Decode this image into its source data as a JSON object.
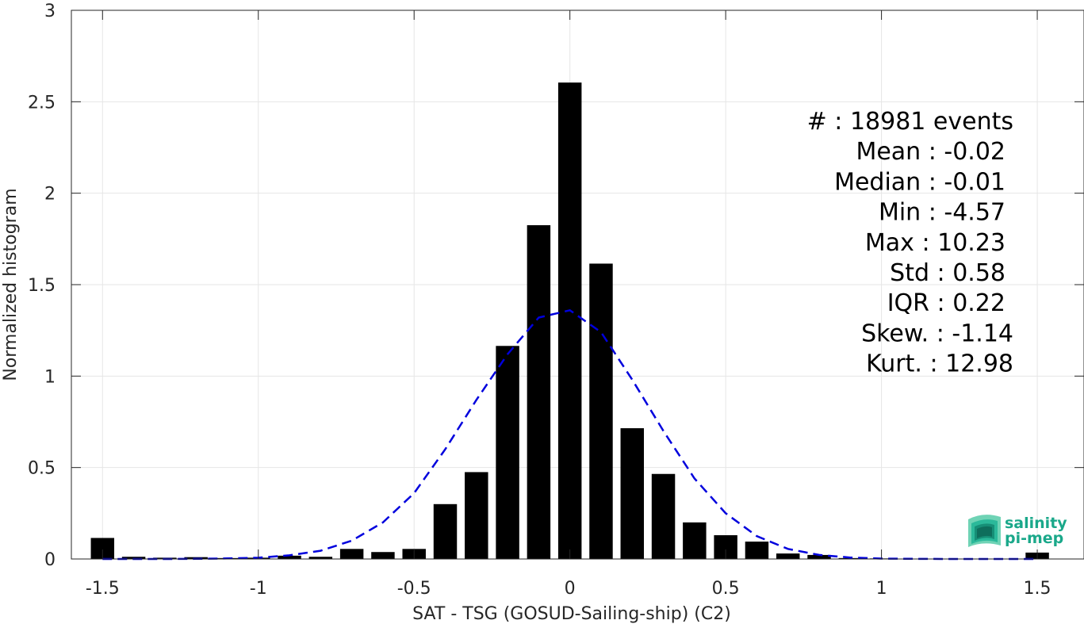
{
  "chart_data": {
    "type": "bar",
    "xlabel": "SAT - TSG (GOSUD-Sailing-ship) (C2)",
    "ylabel": "Normalized histogram",
    "xlim": [
      -1.6,
      1.65
    ],
    "ylim": [
      0,
      3
    ],
    "xticks": [
      -1.5,
      -1,
      -0.5,
      0,
      0.5,
      1,
      1.5
    ],
    "xtick_labels": [
      "-1.5",
      "-1",
      "-0.5",
      "0",
      "0.5",
      "1",
      "1.5"
    ],
    "yticks": [
      0,
      0.5,
      1,
      1.5,
      2,
      2.5,
      3
    ],
    "ytick_labels": [
      "0",
      "0.5",
      "1",
      "1.5",
      "2",
      "2.5",
      "3"
    ],
    "grid": true,
    "bar_width": 0.075,
    "bars": {
      "x": [
        -1.5,
        -1.4,
        -1.3,
        -1.2,
        -1.1,
        -1.0,
        -0.9,
        -0.8,
        -0.7,
        -0.6,
        -0.5,
        -0.4,
        -0.3,
        -0.2,
        -0.1,
        0.0,
        0.1,
        0.2,
        0.3,
        0.4,
        0.5,
        0.6,
        0.7,
        0.8,
        0.9,
        1.0,
        1.1,
        1.2,
        1.3,
        1.4,
        1.5
      ],
      "values": [
        0.115,
        0.012,
        0.007,
        0.01,
        0.005,
        0.007,
        0.018,
        0.012,
        0.055,
        0.038,
        0.055,
        0.3,
        0.475,
        1.165,
        1.825,
        2.605,
        1.615,
        0.715,
        0.465,
        0.2,
        0.13,
        0.095,
        0.03,
        0.022,
        0.005,
        0.003,
        0.002,
        0.002,
        0.002,
        0.002,
        0.035
      ],
      "color": "#000000"
    },
    "fit_curve": {
      "style": "dashed",
      "color": "#0000dd",
      "x": [
        -1.5,
        -1.4,
        -1.3,
        -1.2,
        -1.1,
        -1.0,
        -0.9,
        -0.8,
        -0.7,
        -0.6,
        -0.5,
        -0.4,
        -0.3,
        -0.2,
        -0.1,
        0.0,
        0.1,
        0.2,
        0.3,
        0.4,
        0.5,
        0.6,
        0.7,
        0.8,
        0.9,
        1.0,
        1.1,
        1.2,
        1.3,
        1.4,
        1.5
      ],
      "y": [
        0.0,
        0.0,
        0.0,
        0.001,
        0.003,
        0.007,
        0.02,
        0.045,
        0.1,
        0.2,
        0.36,
        0.6,
        0.87,
        1.12,
        1.32,
        1.36,
        1.24,
        0.98,
        0.7,
        0.44,
        0.25,
        0.125,
        0.055,
        0.022,
        0.008,
        0.002,
        0.001,
        0.0,
        0.0,
        0.0,
        0.0
      ]
    },
    "annotation": {
      "lines": [
        "#  : 18981 events",
        "Mean : -0.02",
        "Median : -0.01",
        "Min : -4.57",
        "Max : 10.23",
        "Std : 0.58",
        "IQR : 0.22",
        "Skew. : -1.14",
        "Kurt. : 12.98"
      ]
    }
  },
  "logo": {
    "line1": "salinity",
    "line2": "pi-mep",
    "color": "#1aa88a"
  }
}
